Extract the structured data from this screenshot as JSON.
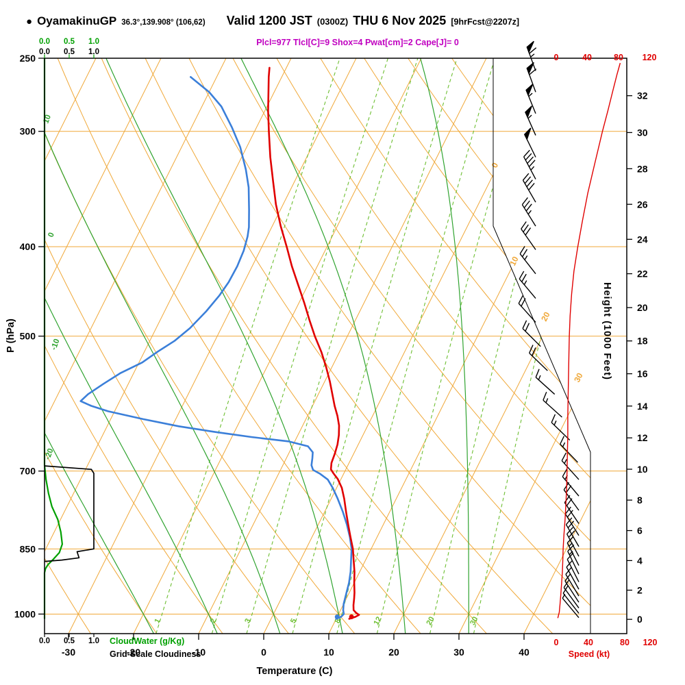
{
  "header": {
    "bullet": "●",
    "station": "OyamakinuGP",
    "coords": "36.3°,139.908° (106,62)",
    "valid_main": "Valid 1200 JST",
    "valid_z": "(0300Z)",
    "valid_date": "THU 6 Nov 2025",
    "fcst": "[9hrFcst@2207z]",
    "params": "Plcl=977 Tlcl[C]=9 Shox=4 Pwat[cm]=2 Cape[J]= 0"
  },
  "axes": {
    "pressure_label": "P (hPa)",
    "pressure_ticks": [
      250,
      300,
      400,
      500,
      700,
      850,
      1000
    ],
    "temp_label": "Temperature (C)",
    "temp_ticks": [
      -30,
      -20,
      -10,
      0,
      10,
      20,
      30,
      40
    ],
    "height_label": "Height (1000 Feet)",
    "height_ticks": [
      0,
      2,
      4,
      6,
      8,
      10,
      12,
      14,
      16,
      18,
      20,
      22,
      24,
      26,
      28,
      30,
      32
    ],
    "speed_label": "Speed (kt)",
    "speed_ticks": [
      "0",
      "40",
      "80",
      "120"
    ],
    "cloud_scale": [
      "0.0",
      "0.5",
      "1.0"
    ],
    "cloudwater_label": "CloudWater (g/Kg)",
    "cloudiness_label": "Grid-Scale Cloudiness",
    "isotherm_labels_right": [
      "0",
      "10",
      "20",
      "30"
    ],
    "moist_labels_left": [
      "10",
      "0",
      "-10",
      "-20"
    ]
  },
  "colors": {
    "grid_orange": "#f0a838",
    "grid_green_dash": "#6cbe30",
    "grid_green_solid": "#2fa32f",
    "temp": "#e00000",
    "dewp": "#3b7fd9",
    "cloudwater": "#00a000",
    "cloudiness": "#000000",
    "speed": "#e00000",
    "magenta": "#c000c0"
  },
  "chart_data": {
    "type": "line",
    "subtype": "skewt-logp-sounding",
    "pressure_range_hpa": [
      250,
      1050
    ],
    "temp_axis_range_c": [
      -30,
      40
    ],
    "temperature_c": [
      [
        1012,
        12.0
      ],
      [
        1007,
        12.8
      ],
      [
        1002,
        13.2
      ],
      [
        997,
        12.6
      ],
      [
        990,
        12.0
      ],
      [
        978,
        11.6
      ],
      [
        962,
        11.2
      ],
      [
        948,
        10.8
      ],
      [
        925,
        10.0
      ],
      [
        900,
        9.2
      ],
      [
        875,
        8.2
      ],
      [
        850,
        7.2
      ],
      [
        825,
        5.9
      ],
      [
        800,
        4.6
      ],
      [
        775,
        3.3
      ],
      [
        750,
        2.0
      ],
      [
        730,
        0.8
      ],
      [
        714,
        -0.5
      ],
      [
        704,
        -1.6
      ],
      [
        697,
        -2.3
      ],
      [
        686,
        -2.7
      ],
      [
        670,
        -2.9
      ],
      [
        655,
        -3.2
      ],
      [
        640,
        -3.7
      ],
      [
        625,
        -4.4
      ],
      [
        610,
        -5.4
      ],
      [
        595,
        -6.6
      ],
      [
        580,
        -7.7
      ],
      [
        560,
        -9.2
      ],
      [
        540,
        -10.9
      ],
      [
        520,
        -12.8
      ],
      [
        500,
        -15.0
      ],
      [
        480,
        -17.1
      ],
      [
        460,
        -19.2
      ],
      [
        440,
        -21.5
      ],
      [
        420,
        -23.9
      ],
      [
        400,
        -26.2
      ],
      [
        380,
        -28.7
      ],
      [
        360,
        -31.1
      ],
      [
        340,
        -33.3
      ],
      [
        320,
        -35.6
      ],
      [
        300,
        -37.8
      ],
      [
        285,
        -39.5
      ],
      [
        270,
        -41.1
      ],
      [
        262,
        -42.0
      ],
      [
        256,
        -42.6
      ]
    ],
    "dewpoint_c": [
      [
        1012,
        10.0
      ],
      [
        1007,
        10.6
      ],
      [
        1000,
        10.8
      ],
      [
        990,
        10.4
      ],
      [
        975,
        10.0
      ],
      [
        950,
        9.6
      ],
      [
        925,
        9.2
      ],
      [
        900,
        8.6
      ],
      [
        875,
        7.8
      ],
      [
        850,
        7.0
      ],
      [
        825,
        5.8
      ],
      [
        800,
        4.4
      ],
      [
        775,
        2.8
      ],
      [
        750,
        1.0
      ],
      [
        730,
        -0.6
      ],
      [
        715,
        -2.0
      ],
      [
        705,
        -3.6
      ],
      [
        698,
        -5.0
      ],
      [
        690,
        -5.6
      ],
      [
        678,
        -6.0
      ],
      [
        668,
        -6.4
      ],
      [
        658,
        -7.6
      ],
      [
        650,
        -11.0
      ],
      [
        643,
        -17.0
      ],
      [
        635,
        -23.0
      ],
      [
        626,
        -29.0
      ],
      [
        615,
        -35.0
      ],
      [
        603,
        -41.0
      ],
      [
        595,
        -44.0
      ],
      [
        588,
        -46.0
      ],
      [
        578,
        -45.4
      ],
      [
        563,
        -43.8
      ],
      [
        548,
        -42.0
      ],
      [
        534,
        -39.5
      ],
      [
        520,
        -38.0
      ],
      [
        506,
        -36.2
      ],
      [
        490,
        -34.8
      ],
      [
        470,
        -33.6
      ],
      [
        452,
        -32.8
      ],
      [
        437,
        -32.4
      ],
      [
        420,
        -32.3
      ],
      [
        404,
        -32.5
      ],
      [
        390,
        -33.0
      ],
      [
        381,
        -33.5
      ],
      [
        365,
        -34.8
      ],
      [
        345,
        -36.6
      ],
      [
        330,
        -38.4
      ],
      [
        312,
        -41.0
      ],
      [
        297,
        -43.8
      ],
      [
        282,
        -47.0
      ],
      [
        272,
        -50.0
      ],
      [
        262,
        -54.0
      ]
    ],
    "surface_dots": {
      "temp": [
        1007,
        12.2
      ],
      "dewp": [
        1007,
        10.0
      ]
    },
    "wind_speed_kt": [
      [
        1010,
        2
      ],
      [
        995,
        4
      ],
      [
        975,
        5
      ],
      [
        950,
        6
      ],
      [
        925,
        7
      ],
      [
        900,
        8
      ],
      [
        875,
        8.5
      ],
      [
        850,
        9
      ],
      [
        820,
        10
      ],
      [
        790,
        11.5
      ],
      [
        760,
        12.5
      ],
      [
        730,
        13.5
      ],
      [
        700,
        14
      ],
      [
        670,
        14.5
      ],
      [
        640,
        15
      ],
      [
        610,
        15
      ],
      [
        580,
        15.5
      ],
      [
        550,
        16
      ],
      [
        520,
        16.5
      ],
      [
        500,
        17
      ],
      [
        475,
        18
      ],
      [
        450,
        20
      ],
      [
        425,
        23
      ],
      [
        400,
        28
      ],
      [
        375,
        34
      ],
      [
        350,
        41
      ],
      [
        325,
        50
      ],
      [
        300,
        60
      ],
      [
        285,
        67
      ],
      [
        270,
        74
      ],
      [
        260,
        79
      ],
      [
        253,
        83
      ]
    ],
    "wind_barbs_p_kt_dir": [
      [
        258,
        65,
        340
      ],
      [
        272,
        60,
        340
      ],
      [
        287,
        55,
        338
      ],
      [
        303,
        55,
        336
      ],
      [
        320,
        50,
        334
      ],
      [
        338,
        45,
        332
      ],
      [
        358,
        40,
        330
      ],
      [
        380,
        35,
        328
      ],
      [
        403,
        30,
        325
      ],
      [
        428,
        25,
        322
      ],
      [
        455,
        25,
        320
      ],
      [
        483,
        20,
        318
      ],
      [
        513,
        20,
        315
      ],
      [
        545,
        18,
        314
      ],
      [
        578,
        15,
        312
      ],
      [
        612,
        15,
        312
      ],
      [
        648,
        15,
        314
      ],
      [
        685,
        15,
        316
      ],
      [
        715,
        15,
        318
      ],
      [
        745,
        15,
        320
      ],
      [
        772,
        18,
        324
      ],
      [
        798,
        20,
        326
      ],
      [
        822,
        20,
        328
      ],
      [
        845,
        20,
        330
      ],
      [
        866,
        18,
        332
      ],
      [
        886,
        15,
        333
      ],
      [
        905,
        15,
        334
      ],
      [
        923,
        12,
        333
      ],
      [
        940,
        12,
        331
      ],
      [
        956,
        10,
        329
      ],
      [
        971,
        10,
        327
      ],
      [
        985,
        8,
        324
      ],
      [
        998,
        8,
        322
      ],
      [
        1009,
        6,
        320
      ]
    ],
    "cloud_water_gkg": [
      [
        250,
        0
      ],
      [
        690,
        0
      ],
      [
        715,
        0.03
      ],
      [
        740,
        0.08
      ],
      [
        765,
        0.15
      ],
      [
        790,
        0.27
      ],
      [
        815,
        0.33
      ],
      [
        840,
        0.36
      ],
      [
        858,
        0.3
      ],
      [
        872,
        0.18
      ],
      [
        884,
        0.07
      ],
      [
        893,
        0.02
      ],
      [
        902,
        0
      ],
      [
        1012,
        0
      ]
    ],
    "cloudiness_frac": [
      [
        691,
        0
      ],
      [
        697,
        0.95
      ],
      [
        704,
        1.0
      ],
      [
        850,
        1.0
      ],
      [
        856,
        0.66
      ],
      [
        869,
        0.7
      ],
      [
        874,
        0.35
      ],
      [
        877,
        0
      ]
    ],
    "mixing_ratios_gkg": [
      1,
      2,
      3,
      5,
      8,
      12,
      20,
      30
    ],
    "moist_adiabats_c": [
      -20,
      -10,
      0,
      10,
      20,
      30
    ],
    "speed_axis_kt": [
      0,
      120
    ]
  }
}
